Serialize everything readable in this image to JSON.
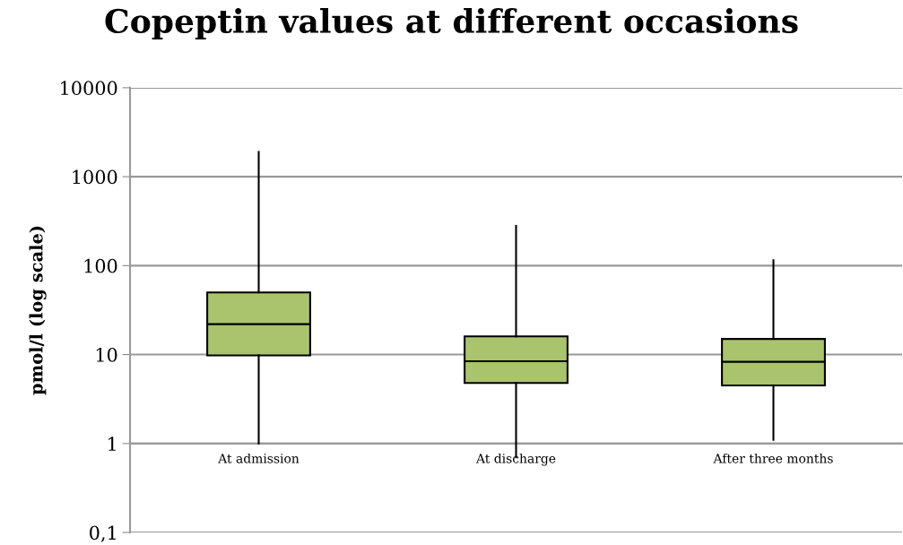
{
  "chart_data": {
    "type": "box",
    "title": "Copeptin values at different occasions",
    "ylabel": "pmol/l (log scale)",
    "categories": [
      "At admission",
      "At discharge",
      "After three months"
    ],
    "boxes": [
      {
        "low": 1,
        "q1": 9.8,
        "median": 22,
        "q3": 50,
        "high": 1900
      },
      {
        "low": 0.7,
        "q1": 4.8,
        "median": 8.4,
        "q3": 16,
        "high": 280
      },
      {
        "low": 1.1,
        "q1": 4.5,
        "median": 8.3,
        "q3": 15,
        "high": 115
      }
    ],
    "color": "#a9c46c",
    "log": "y",
    "ylim": [
      0.1,
      10000
    ],
    "yticks": [
      {
        "value": 0.1,
        "label": "0,1"
      },
      1,
      10,
      100,
      1000,
      10000
    ],
    "grid": "y"
  }
}
